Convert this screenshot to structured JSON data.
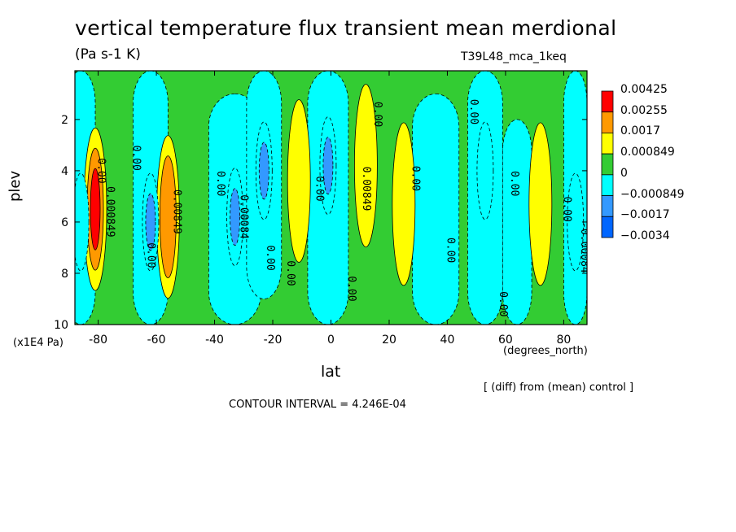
{
  "chart_data": {
    "type": "heatmap",
    "title": "vertical temperature flux transient mean merdional",
    "units_label": "(Pa s-1 K)",
    "experiment_label": "T39L48_mca_1keq",
    "xlabel": "lat",
    "xunits": "(degrees_north)",
    "ylabel": "plev",
    "yunits": "(x1E4 Pa)",
    "xlim": [
      -88,
      88
    ],
    "ylim": [
      10,
      0.1
    ],
    "xticks": [
      -80,
      -60,
      -40,
      -20,
      0,
      20,
      40,
      60,
      80
    ],
    "yticks": [
      2,
      4,
      6,
      8,
      10
    ],
    "diff_note": "[ (diff) from (mean) control ]",
    "contour_interval_label": "CONTOUR INTERVAL = 4.246E-04",
    "legend": {
      "placement": "right",
      "levels": [
        "0.00425",
        "0.00255",
        "0.0017",
        "0.000849",
        "0",
        "−0.000849",
        "−0.0017",
        "−0.0034"
      ],
      "colors": [
        "#ff0000",
        "#ff9900",
        "#ffff00",
        "#33cc33",
        "#00ffff",
        "#3399ff",
        "#0066ff"
      ]
    },
    "background_color": "#33cc33",
    "features": [
      {
        "label": "maximum",
        "lat": -81,
        "plev": 5.5,
        "level": 3
      },
      {
        "label": "maximum",
        "lat": -56,
        "plev": 5.8,
        "level": 2
      },
      {
        "label": "maximum",
        "lat": 12,
        "plev": 3.8,
        "level": 1
      },
      {
        "label": "maximum",
        "lat": 72,
        "plev": 5.3,
        "level": 1
      },
      {
        "label": "maximum",
        "lat": -11,
        "plev": 4.4,
        "level": 1
      },
      {
        "label": "maximum",
        "lat": 25,
        "plev": 5.3,
        "level": 1
      },
      {
        "label": "minimum",
        "lat": -62,
        "plev": 6.0,
        "level": -2
      },
      {
        "label": "minimum",
        "lat": -33,
        "plev": 5.8,
        "level": -2
      },
      {
        "label": "minimum",
        "lat": -23,
        "plev": 4.0,
        "level": -2
      },
      {
        "label": "minimum",
        "lat": -1,
        "plev": 3.8,
        "level": -2
      },
      {
        "label": "minimum",
        "lat": -86,
        "plev": 6.0,
        "level": -1
      },
      {
        "label": "minimum",
        "lat": 53,
        "plev": 4.0,
        "level": -1
      },
      {
        "label": "minimum",
        "lat": 84,
        "plev": 6.0,
        "level": -1
      }
    ],
    "contour_labels": [
      {
        "text": "0.00",
        "lat": -80,
        "plev": 4.0
      },
      {
        "text": "0.000849",
        "lat": -77,
        "plev": 5.6
      },
      {
        "text": "0.00",
        "lat": -68,
        "plev": 3.5
      },
      {
        "text": "0.00",
        "lat": -63,
        "plev": 7.3
      },
      {
        "text": "0.00849",
        "lat": -54,
        "plev": 5.6
      },
      {
        "text": "0.00",
        "lat": -39,
        "plev": 4.5
      },
      {
        "text": "0.00084",
        "lat": -31,
        "plev": 5.8
      },
      {
        "text": "0.00",
        "lat": -22,
        "plev": 7.4
      },
      {
        "text": "0.00",
        "lat": -15,
        "plev": 8.0
      },
      {
        "text": "0.00",
        "lat": -5,
        "plev": 4.7
      },
      {
        "text": "0.00",
        "lat": 6,
        "plev": 8.6
      },
      {
        "text": "0.00849",
        "lat": 11,
        "plev": 4.7
      },
      {
        "text": "0.00",
        "lat": 15,
        "plev": 1.8
      },
      {
        "text": "0.00",
        "lat": 28,
        "plev": 4.3
      },
      {
        "text": "0.00",
        "lat": 40,
        "plev": 7.1
      },
      {
        "text": "0.00",
        "lat": 48,
        "plev": 1.7
      },
      {
        "text": "0.00",
        "lat": 58,
        "plev": 9.2
      },
      {
        "text": "0.00",
        "lat": 62,
        "plev": 4.5
      },
      {
        "text": "0.00",
        "lat": 80,
        "plev": 5.5
      },
      {
        "text": "-0.00084",
        "lat": 86,
        "plev": 7.0
      }
    ]
  }
}
